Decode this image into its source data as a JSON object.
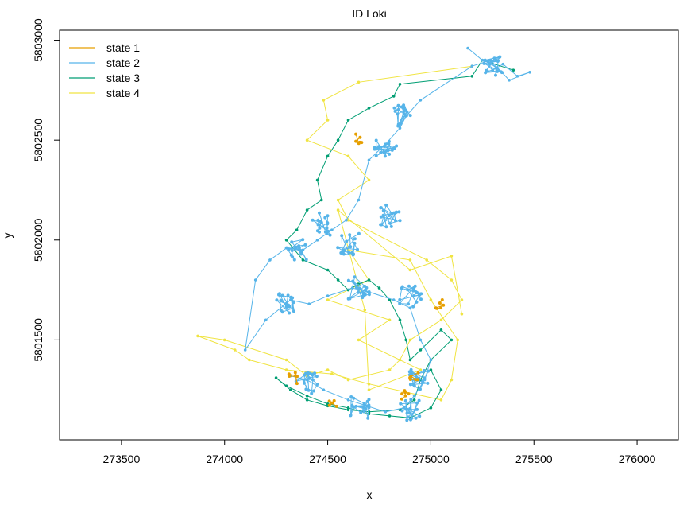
{
  "chart_data": {
    "type": "line",
    "title": "ID Loki",
    "xlabel": "x",
    "ylabel": "y",
    "xlim": [
      273200,
      276200
    ],
    "ylim": [
      5801000,
      5803050
    ],
    "xticks": [
      273500,
      274000,
      274500,
      275000,
      275500,
      276000
    ],
    "yticks": [
      5801500,
      5802000,
      5802500,
      5803000
    ],
    "xtick_labels": [
      "273500",
      "274000",
      "274500",
      "275000",
      "275500",
      "276000"
    ],
    "ytick_labels": [
      "5801500",
      "5802000",
      "5802500",
      "5803000"
    ],
    "grid": false,
    "legend_position": "top-left",
    "series": [
      {
        "name": "state 1",
        "color": "#E69F00",
        "clusters": [
          {
            "x": 274660,
            "y": 5802510
          },
          {
            "x": 274870,
            "y": 5801220
          },
          {
            "x": 274920,
            "y": 5801320
          },
          {
            "x": 275040,
            "y": 5801680
          },
          {
            "x": 274330,
            "y": 5801310
          },
          {
            "x": 274520,
            "y": 5801180
          }
        ]
      },
      {
        "name": "state 2",
        "color": "#56B4E9",
        "clusters": [
          {
            "x": 275300,
            "y": 5802880
          },
          {
            "x": 274850,
            "y": 5802620
          },
          {
            "x": 274780,
            "y": 5802470
          },
          {
            "x": 274480,
            "y": 5802080
          },
          {
            "x": 274800,
            "y": 5802120
          },
          {
            "x": 274350,
            "y": 5801950
          },
          {
            "x": 274600,
            "y": 5801980
          },
          {
            "x": 274300,
            "y": 5801680
          },
          {
            "x": 274650,
            "y": 5801760
          },
          {
            "x": 274900,
            "y": 5801720
          },
          {
            "x": 274950,
            "y": 5801300
          },
          {
            "x": 274900,
            "y": 5801150
          },
          {
            "x": 274650,
            "y": 5801160
          },
          {
            "x": 274400,
            "y": 5801280
          }
        ],
        "x": [
          275180,
          275250,
          275300,
          275350,
          275420,
          275480,
          275380,
          275290,
          275200,
          274950,
          274880,
          274850,
          274780,
          274700,
          274650,
          274590,
          274520,
          274450,
          274380,
          274300,
          274220,
          274150,
          274100,
          274200,
          274320,
          274410,
          274500,
          274620,
          274700,
          274820,
          274900,
          274950,
          275000,
          274970,
          274920,
          274870,
          274780,
          274690,
          274600,
          274480,
          274400,
          274320
        ],
        "y": [
          5802960,
          5802900,
          5802850,
          5802880,
          5802820,
          5802840,
          5802800,
          5802900,
          5802870,
          5802700,
          5802620,
          5802560,
          5802480,
          5802400,
          5802200,
          5802100,
          5802050,
          5802000,
          5801950,
          5801960,
          5801900,
          5801800,
          5801450,
          5801600,
          5801700,
          5801680,
          5801720,
          5801760,
          5801740,
          5801700,
          5801660,
          5801500,
          5801400,
          5801300,
          5801220,
          5801160,
          5801140,
          5801170,
          5801200,
          5801250,
          5801300,
          5801320
        ]
      },
      {
        "name": "state 3",
        "color": "#009E73",
        "x": [
          275400,
          275250,
          275200,
          274850,
          274820,
          274700,
          274600,
          274550,
          274500,
          274450,
          274470,
          274400,
          274350,
          274300,
          274380,
          274500,
          274550,
          274600,
          274650,
          274700,
          274750,
          274800,
          274850,
          274880,
          274900,
          274950,
          275050,
          275100,
          275000,
          274950,
          274920,
          274850,
          274700,
          274600,
          274500,
          274400,
          274320,
          274250,
          274300,
          274400,
          274500,
          274600,
          274700,
          274800,
          274900,
          275000,
          275050,
          275000
        ],
        "y": [
          5802850,
          5802900,
          5802820,
          5802780,
          5802720,
          5802660,
          5802600,
          5802500,
          5802420,
          5802300,
          5802200,
          5802150,
          5802050,
          5802000,
          5801900,
          5801850,
          5801800,
          5801750,
          5801780,
          5801800,
          5801760,
          5801700,
          5801600,
          5801500,
          5801400,
          5801450,
          5801550,
          5801500,
          5801400,
          5801300,
          5801200,
          5801150,
          5801140,
          5801150,
          5801170,
          5801200,
          5801250,
          5801310,
          5801270,
          5801220,
          5801180,
          5801160,
          5801130,
          5801120,
          5801110,
          5801160,
          5801250,
          5801350
        ]
      },
      {
        "name": "state 4",
        "color": "#F0E442",
        "x": [
          275200,
          274650,
          274480,
          274500,
          274400,
          274600,
          274700,
          274550,
          274600,
          274980,
          275100,
          275150,
          275050,
          274900,
          274850,
          274800,
          274600,
          274500,
          274400,
          274300,
          274000,
          273870,
          274050,
          274120,
          274300,
          274520,
          274700,
          275050,
          275100,
          275130,
          275000,
          274900,
          274600,
          274700,
          274500,
          274800,
          274650,
          274950,
          274700,
          274680,
          274550,
          274900,
          275100,
          275150
        ],
        "y": [
          5802870,
          5802790,
          5802700,
          5802600,
          5802500,
          5802420,
          5802300,
          5802200,
          5802100,
          5801900,
          5801800,
          5801700,
          5801600,
          5801500,
          5801400,
          5801350,
          5801300,
          5801350,
          5801320,
          5801400,
          5801500,
          5801520,
          5801450,
          5801400,
          5801350,
          5801330,
          5801280,
          5801200,
          5801300,
          5801500,
          5801700,
          5801900,
          5801950,
          5801800,
          5801700,
          5801600,
          5801500,
          5801350,
          5801250,
          5801650,
          5802150,
          5801850,
          5801920,
          5801630
        ]
      }
    ]
  }
}
